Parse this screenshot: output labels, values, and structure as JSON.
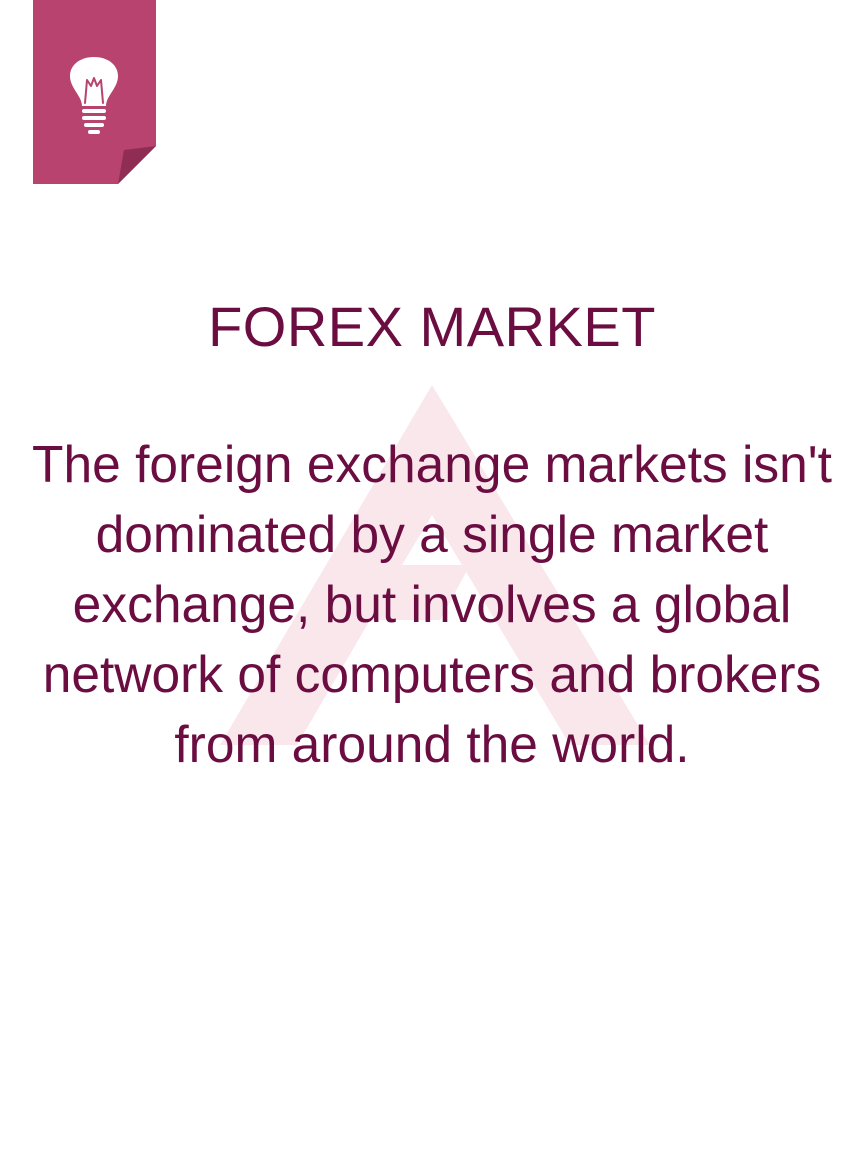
{
  "colors": {
    "tag_background": "#b8436f",
    "tag_fold": "#8f2d54",
    "text": "#6b0d41",
    "watermark": "#f9e7ec"
  },
  "icons": {
    "tag": "lightbulb-icon",
    "watermark": "arrow-up-logo"
  },
  "card": {
    "title": "FOREX MARKET",
    "body": "The foreign exchange markets isn't dominated by a single market exchange, but involves a global network of computers and brokers from around the world."
  }
}
